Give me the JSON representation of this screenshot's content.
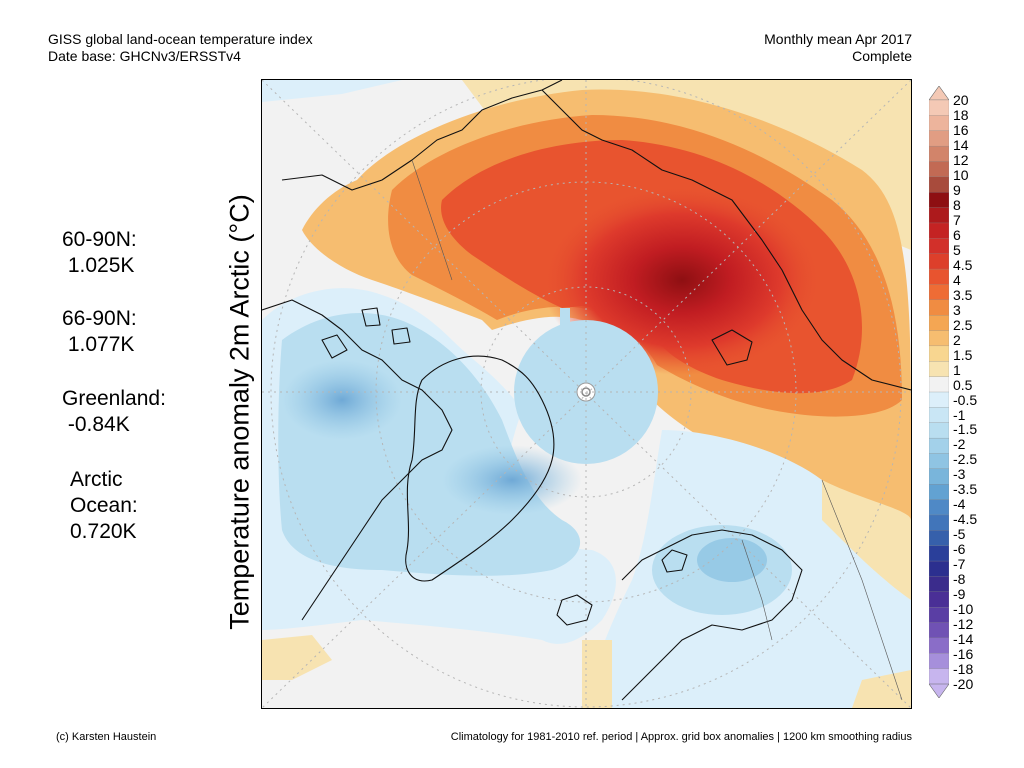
{
  "header": {
    "title_line1": "GISS global land-ocean temperature index",
    "title_line2": "Date base: GHCNv3/ERSSTv4",
    "period": "Monthly mean Apr 2017",
    "status": "Complete"
  },
  "stats": {
    "n60_90": "60-90N:\n 1.025K",
    "n66_90": "66-90N:\n 1.077K",
    "greenland": "Greenland:\n -0.84K",
    "arctic_ocean": "Arctic\nOcean:\n0.720K"
  },
  "axis": {
    "ylabel": "Temperature anomaly 2m Arctic (°C)"
  },
  "colorbar": {
    "labels": [
      "20",
      "18",
      "16",
      "14",
      "12",
      "10",
      "9",
      "8",
      "7",
      "6",
      "5",
      "4.5",
      "4",
      "3.5",
      "3",
      "2.5",
      "2",
      "1.5",
      "1",
      "0.5",
      "-0.5",
      "-1",
      "-1.5",
      "-2",
      "-2.5",
      "-3",
      "-3.5",
      "-4",
      "-4.5",
      "-5",
      "-6",
      "-7",
      "-8",
      "-9",
      "-10",
      "-12",
      "-14",
      "-16",
      "-18",
      "-20"
    ],
    "colors": {
      "extreme_high": "#f4c9b5",
      "very_high": "#d98c6c",
      "dark_red": "#8e0f12",
      "red": "#d2302a",
      "orange_red": "#e8542f",
      "orange": "#f08c42",
      "light_orange": "#f6bd70",
      "pale_yellow": "#f7e3b1",
      "neutral": "#f2f2f2",
      "pale_blue": "#dceffa",
      "light_blue": "#b9def0",
      "mid_blue": "#8fc4e3",
      "blue": "#4f89c6",
      "dark_blue": "#2a3f9a",
      "purple": "#5a3ea4",
      "lavender": "#c7b5ee"
    }
  },
  "footer": {
    "credit": "(c) Karsten Haustein",
    "note": "Climatology for 1981-2010 ref. period | Approx. grid box anomalies | 1200 km smoothing radius"
  }
}
